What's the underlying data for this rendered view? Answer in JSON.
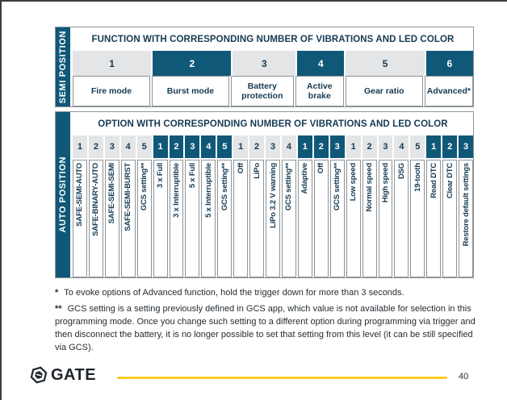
{
  "colors": {
    "teal": "#0F5878",
    "cell_gray": "#E3E5E6",
    "table_text_navy": "#163A53",
    "border_gray": "#8E9497",
    "footer_line_yellow": "#FACB24",
    "body_text": "#262D33"
  },
  "semi_table": {
    "side_label": "SEMI POSITION",
    "header": "FUNCTION WITH CORRESPONDING NUMBER OF VIBRATIONS AND LED COLOR",
    "functions": [
      {
        "number": "1",
        "label": "Fire mode",
        "dark": false,
        "span": 5
      },
      {
        "number": "2",
        "label": "Burst mode",
        "dark": true,
        "span": 5
      },
      {
        "number": "3",
        "label": "Battery protection",
        "dark": false,
        "span": 4
      },
      {
        "number": "4",
        "label": "Active brake",
        "dark": true,
        "span": 3
      },
      {
        "number": "5",
        "label": "Gear ratio",
        "dark": false,
        "span": 5
      },
      {
        "number": "6",
        "label": "Advanced*",
        "dark": true,
        "span": 3
      }
    ]
  },
  "auto_table": {
    "side_label": "AUTO POSITION",
    "header": "OPTION WITH CORRESPONDING NUMBER OF VIBRATIONS AND LED COLOR",
    "groups": [
      {
        "function": "Fire mode",
        "dark": false,
        "options": [
          "SAFE-SEMI-AUTO",
          "SAFE-BINARY-AUTO",
          "SAFE-SEMI-SEMI",
          "SAFE-SEMI-BURST",
          "GCS setting**"
        ]
      },
      {
        "function": "Burst mode",
        "dark": true,
        "options": [
          "3 x Full",
          "3 x Interruptible",
          "5 x Full",
          "5 x Interruptible",
          "GCS setting**"
        ]
      },
      {
        "function": "Battery protection",
        "dark": false,
        "options": [
          "Off",
          "LiPo",
          "LiPo 3.2 V warning",
          "GCS setting**"
        ]
      },
      {
        "function": "Active brake",
        "dark": true,
        "options": [
          "Adaptive",
          "Off",
          "GCS setting**"
        ]
      },
      {
        "function": "Gear ratio",
        "dark": false,
        "options": [
          "Low speed",
          "Normal speed",
          "High speed",
          "DSG",
          "19-tooth"
        ]
      },
      {
        "function": "Advanced",
        "dark": true,
        "options": [
          "Read DTC",
          "Clear DTC",
          "Restore default settings"
        ]
      }
    ]
  },
  "footnotes": [
    {
      "marker": "*",
      "text": "To evoke options of Advanced function, hold the trigger down for more than 3 seconds."
    },
    {
      "marker": "**",
      "text": "GCS setting is a setting previously defined in GCS app, which value is not available for selection in this programming mode. Once you change such setting to a different option during programming via trigger and then disconnect the battery, it is no longer possible to set that setting from this level (it can be still specified via GCS)."
    }
  ],
  "footer": {
    "brand": "GATE",
    "page_number": "40"
  }
}
